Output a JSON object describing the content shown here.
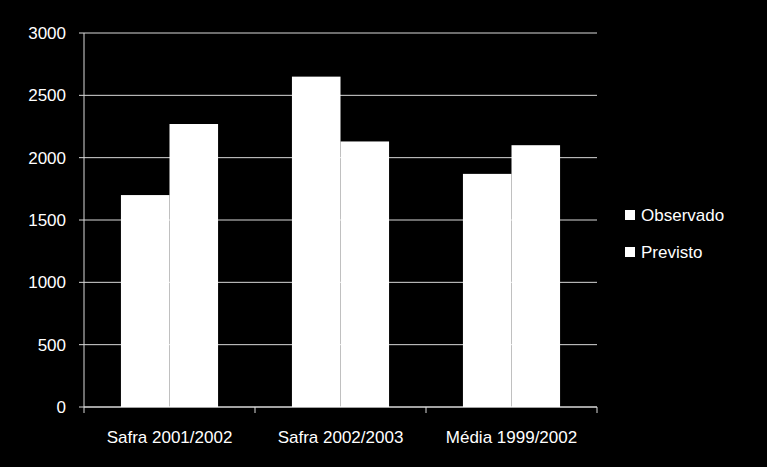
{
  "chart_data": {
    "type": "bar",
    "categories": [
      "Safra 2001/2002",
      "Safra 2002/2003",
      "Média 1999/2002"
    ],
    "series": [
      {
        "name": "Observado",
        "color": "#ffffff",
        "values": [
          1700,
          2650,
          1870
        ]
      },
      {
        "name": "Previsto",
        "color": "#ffffff",
        "values": [
          2270,
          2130,
          2100
        ]
      }
    ],
    "ylim": [
      0,
      3000
    ],
    "yticks": [
      0,
      500,
      1000,
      1500,
      2000,
      2500,
      3000
    ],
    "grid": true,
    "legend": "right"
  }
}
